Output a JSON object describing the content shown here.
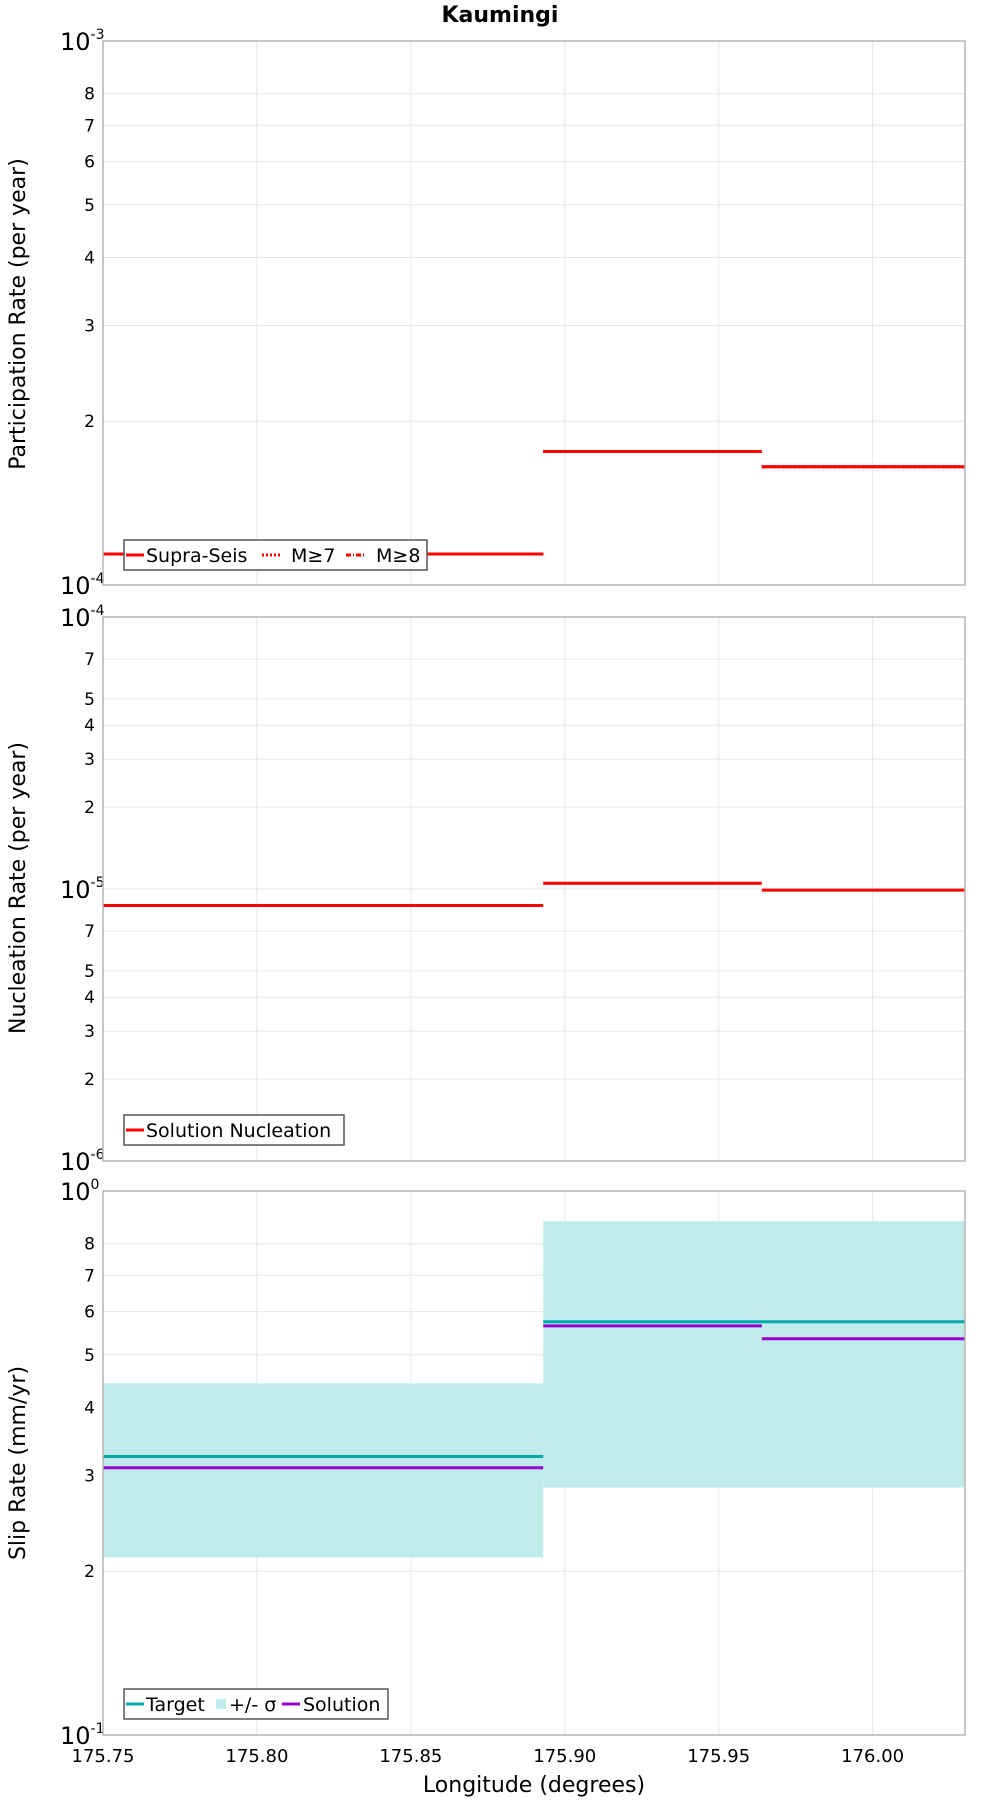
{
  "title": "Kaumingi",
  "colors": {
    "participation": "#ff0000",
    "nucleation": "#ff0000",
    "target": "#00aaaa",
    "sigma_band": "#c0ebeb",
    "solution": "#9900cc",
    "grid": "#e6e6e6",
    "frame": "#b5b5b5"
  },
  "chart_data": [
    {
      "type": "line",
      "ylabel": "Participation Rate (per year)",
      "yscale": "log",
      "ylim": [
        0.0001,
        0.001
      ],
      "xlim": [
        175.75,
        176.03
      ],
      "grid": true,
      "legend_position": "bottom-left",
      "decade_labels": [
        {
          "base": "10",
          "exp": "-4"
        },
        {
          "base": "10",
          "exp": "-3"
        }
      ],
      "minor_ticks": [
        2,
        3,
        4,
        5,
        6,
        7,
        8
      ],
      "segments": [
        {
          "x0": 175.75,
          "x1": 175.893,
          "y": 0.000114
        },
        {
          "x0": 175.893,
          "x1": 175.964,
          "y": 0.000176
        },
        {
          "x0": 175.964,
          "x1": 176.03,
          "y": 0.000165
        }
      ],
      "series": [
        {
          "name": "Supra-Seis",
          "style": "solid"
        },
        {
          "name": "M≥7",
          "style": "dotted"
        },
        {
          "name": "M≥8",
          "style": "dashdot"
        }
      ]
    },
    {
      "type": "line",
      "ylabel": "Nucleation Rate (per year)",
      "yscale": "log",
      "ylim": [
        1e-06,
        0.0001
      ],
      "xlim": [
        175.75,
        176.03
      ],
      "grid": true,
      "legend_position": "bottom-left",
      "decade_labels": [
        {
          "base": "10",
          "exp": "-6"
        },
        {
          "base": "10",
          "exp": "-5"
        },
        {
          "base": "10",
          "exp": "-4"
        }
      ],
      "minor_ticks": [
        2,
        3,
        4,
        5,
        7
      ],
      "series": [
        {
          "name": "Solution Nucleation",
          "segments": [
            {
              "x0": 175.75,
              "x1": 175.893,
              "y": 8.7e-06
            },
            {
              "x0": 175.893,
              "x1": 175.964,
              "y": 1.05e-05
            },
            {
              "x0": 175.964,
              "x1": 176.03,
              "y": 9.9e-06
            }
          ]
        }
      ]
    },
    {
      "type": "line",
      "ylabel": "Slip Rate (mm/yr)",
      "xlabel": "Longitude (degrees)",
      "yscale": "log",
      "ylim": [
        0.1,
        1
      ],
      "xlim": [
        175.75,
        176.03
      ],
      "xticks": [
        "175.75",
        "175.80",
        "175.85",
        "175.90",
        "175.95",
        "176.00"
      ],
      "grid": true,
      "legend_position": "bottom-left",
      "decade_labels": [
        {
          "base": "10",
          "exp": "-1"
        },
        {
          "base": "10",
          "exp": "0"
        }
      ],
      "minor_ticks": [
        2,
        3,
        4,
        5,
        6,
        7,
        8
      ],
      "sigma_band": {
        "name": "+/- σ",
        "segments": [
          {
            "x0": 175.75,
            "x1": 175.893,
            "low": 0.212,
            "high": 0.443
          },
          {
            "x0": 175.893,
            "x1": 176.03,
            "low": 0.285,
            "high": 0.88
          }
        ]
      },
      "series": [
        {
          "name": "Target",
          "segments": [
            {
              "x0": 175.75,
              "x1": 175.893,
              "y": 0.325
            },
            {
              "x0": 175.893,
              "x1": 176.03,
              "y": 0.575
            }
          ]
        },
        {
          "name": "Solution",
          "segments": [
            {
              "x0": 175.75,
              "x1": 175.893,
              "y": 0.31
            },
            {
              "x0": 175.893,
              "x1": 175.964,
              "y": 0.565
            },
            {
              "x0": 175.964,
              "x1": 176.03,
              "y": 0.535
            }
          ]
        }
      ]
    }
  ]
}
